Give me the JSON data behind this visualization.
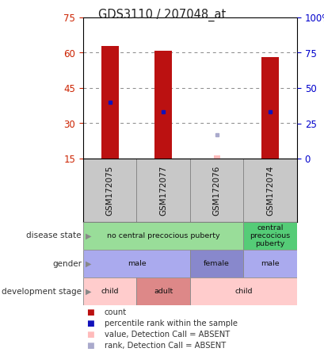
{
  "title": "GDS3110 / 207048_at",
  "samples": [
    "GSM172075",
    "GSM172077",
    "GSM172076",
    "GSM172074"
  ],
  "bar_values": [
    63,
    61,
    null,
    58
  ],
  "bar_bottom": 15,
  "percentile_ranks": [
    39,
    35,
    null,
    35
  ],
  "absent_value": 16.5,
  "absent_rank": 25,
  "absent_sample_idx": 2,
  "ylim_left": [
    15,
    75
  ],
  "ylim_right": [
    0,
    100
  ],
  "yticks_left": [
    15,
    30,
    45,
    60,
    75
  ],
  "yticks_right": [
    0,
    25,
    50,
    75,
    100
  ],
  "ytick_labels_left": [
    "15",
    "30",
    "45",
    "60",
    "75"
  ],
  "ytick_labels_right": [
    "0",
    "25",
    "50",
    "75",
    "100%"
  ],
  "bar_color": "#bb1111",
  "rank_color": "#1111bb",
  "absent_val_color": "#ffbbbb",
  "absent_rank_color": "#aaaacc",
  "bar_width": 0.32,
  "disease_state": {
    "label": "disease state",
    "groups": [
      {
        "text": "no central precocious puberty",
        "span": [
          0,
          3
        ],
        "color": "#99dd99"
      },
      {
        "text": "central\nprecocious\npuberty",
        "span": [
          3,
          4
        ],
        "color": "#55cc77"
      }
    ]
  },
  "gender": {
    "label": "gender",
    "groups": [
      {
        "text": "male",
        "span": [
          0,
          2
        ],
        "color": "#aaaaee"
      },
      {
        "text": "female",
        "span": [
          2,
          3
        ],
        "color": "#8888cc"
      },
      {
        "text": "male",
        "span": [
          3,
          4
        ],
        "color": "#aaaaee"
      }
    ]
  },
  "development_stage": {
    "label": "development stage",
    "groups": [
      {
        "text": "child",
        "span": [
          0,
          1
        ],
        "color": "#ffcccc"
      },
      {
        "text": "adult",
        "span": [
          1,
          2
        ],
        "color": "#dd8888"
      },
      {
        "text": "child",
        "span": [
          2,
          4
        ],
        "color": "#ffcccc"
      }
    ]
  },
  "legend_items": [
    {
      "label": "count",
      "color": "#bb1111"
    },
    {
      "label": "percentile rank within the sample",
      "color": "#1111bb"
    },
    {
      "label": "value, Detection Call = ABSENT",
      "color": "#ffbbbb"
    },
    {
      "label": "rank, Detection Call = ABSENT",
      "color": "#aaaacc"
    }
  ],
  "axis_label_color_left": "#cc2200",
  "axis_label_color_right": "#0000cc",
  "bg_color": "#ffffff",
  "plot_bg_color": "#ffffff",
  "sample_label_bg": "#c8c8c8",
  "grid_color": "#888888"
}
